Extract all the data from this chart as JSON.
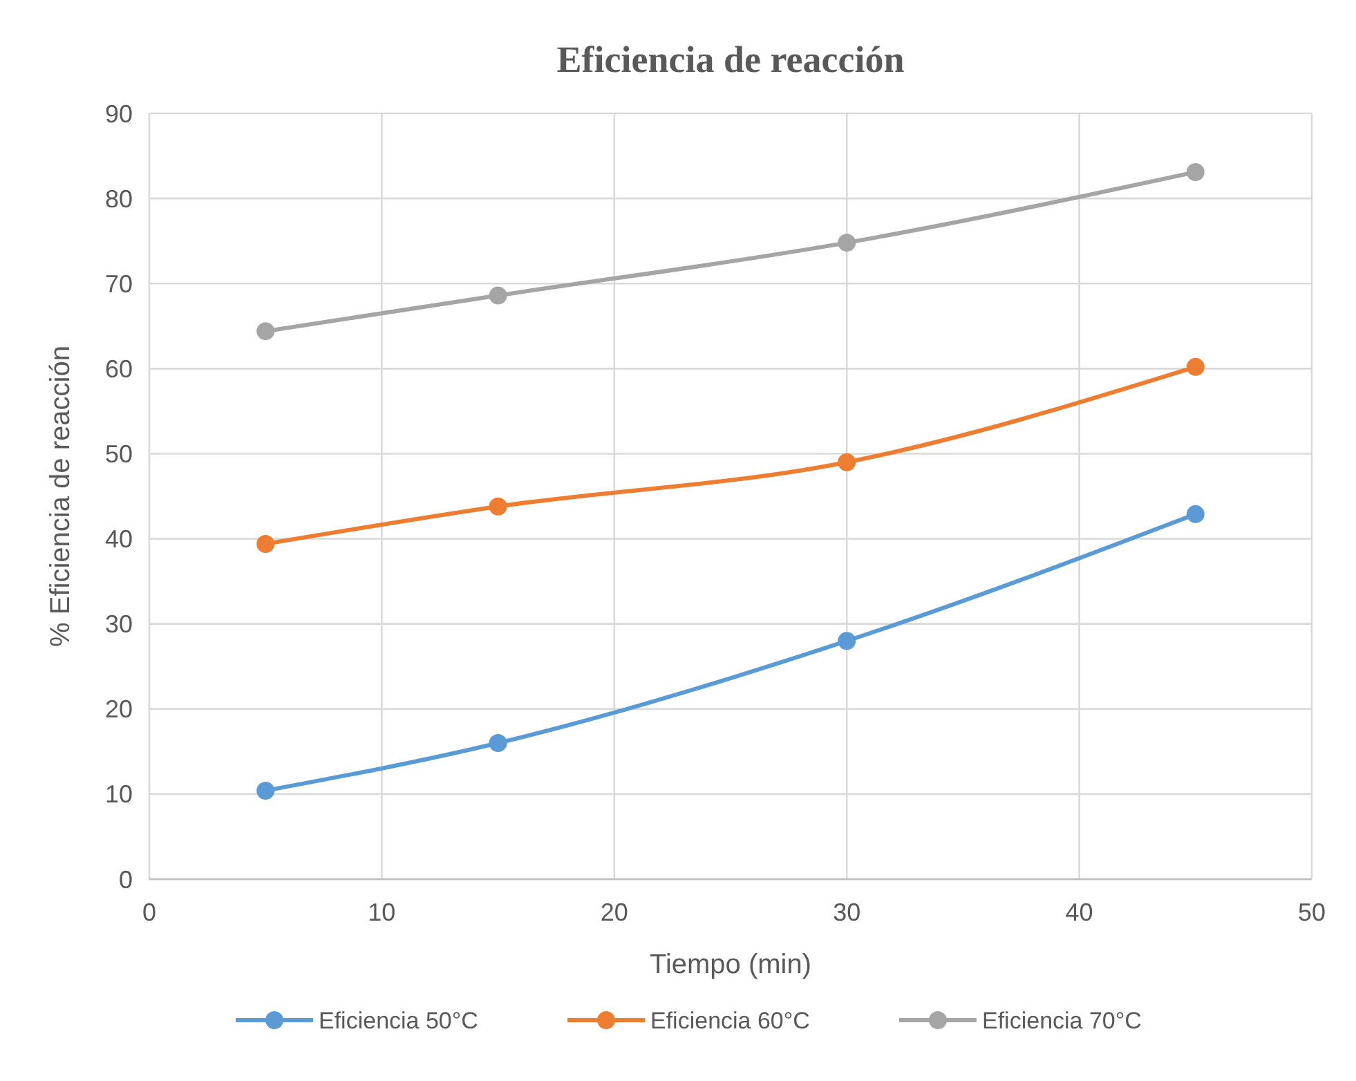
{
  "chart_data": {
    "type": "line",
    "title": "Eficiencia de reacción",
    "xlabel": "Tiempo (min)",
    "ylabel": "% Eficiencia de reacción",
    "x": [
      5,
      15,
      30,
      45
    ],
    "series": [
      {
        "name": "Eficiencia 50°C",
        "color": "#5b9bd5",
        "values": [
          10.4,
          16.0,
          28.0,
          42.9
        ]
      },
      {
        "name": "Eficiencia 60°C",
        "color": "#ed7d31",
        "values": [
          39.4,
          43.8,
          49.0,
          60.2
        ]
      },
      {
        "name": "Eficiencia 70°C",
        "color": "#a5a5a5",
        "values": [
          64.4,
          68.6,
          74.8,
          83.1
        ]
      }
    ],
    "xlim": [
      0,
      50
    ],
    "xticks": [
      0,
      10,
      20,
      30,
      40,
      50
    ],
    "ylim": [
      0,
      90
    ],
    "yticks": [
      0,
      10,
      20,
      30,
      40,
      50,
      60,
      70,
      80,
      90
    ],
    "grid": true,
    "legend": "bottom",
    "marker": "circle",
    "line_style": "solid"
  }
}
